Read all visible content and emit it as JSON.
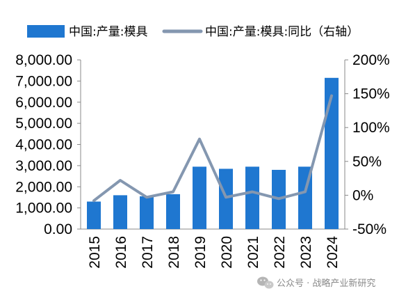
{
  "chart_data": {
    "type": "bar",
    "categories": [
      "2015",
      "2016",
      "2017",
      "2018",
      "2019",
      "2020",
      "2021",
      "2022",
      "2023",
      "2024"
    ],
    "series": [
      {
        "name": "中国:产量:模具",
        "type": "bar",
        "axis": "left",
        "color": "#1f77d0",
        "values": [
          1300,
          1600,
          1550,
          1650,
          2950,
          2850,
          2950,
          2800,
          2950,
          7150
        ]
      },
      {
        "name": "中国:产量:模具:同比（右轴）",
        "type": "line",
        "axis": "right",
        "color": "#8497b0",
        "values": [
          -8,
          22,
          -3,
          5,
          83,
          -3,
          5,
          -5,
          5,
          147
        ]
      }
    ],
    "left_axis": {
      "min": 0,
      "max": 8000,
      "ticks": [
        "0.00",
        "1,000.00",
        "2,000.00",
        "3,000.00",
        "4,000.00",
        "5,000.00",
        "6,000.00",
        "7,000.00",
        "8,000.00"
      ]
    },
    "right_axis": {
      "min": -50,
      "max": 200,
      "unit": "%",
      "ticks": [
        "-50%",
        "0%",
        "50%",
        "100%",
        "150%",
        "200%"
      ]
    },
    "legend_position": "top",
    "grid": false
  },
  "watermark": {
    "text": "公众号 · 战略产业新研究",
    "icon": "wechat-icon"
  }
}
